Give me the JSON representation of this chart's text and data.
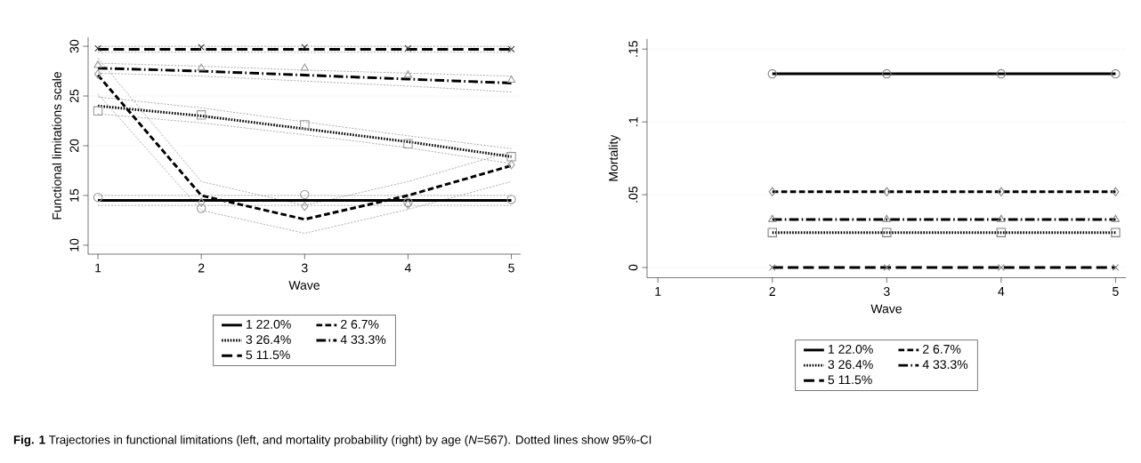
{
  "chart_data": [
    {
      "type": "line",
      "xlabel": "Wave",
      "ylabel": "Functional limitations scale",
      "x": [
        1,
        2,
        3,
        4,
        5
      ],
      "xlim": [
        0.905,
        5.09
      ],
      "ylim": [
        9.1,
        30.9
      ],
      "xticks": [
        1,
        2,
        3,
        4,
        5
      ],
      "yticks": [
        10,
        15,
        20,
        25,
        30
      ],
      "grid": "y",
      "legend": "bottom",
      "annotations": [
        "**Fig. 1** Trajectories in functional limitations (left, and mortality probability (right) by age (*N*=567). Dotted lines show 95%-CI"
      ],
      "series": [
        {
          "color": "#aaaaaa",
          "line_style": "dashed",
          "values": [
            14.0,
            14.0,
            14.0,
            14.0,
            14.0
          ]
        },
        {
          "color": "#aaaaaa",
          "line_style": "dashed",
          "values": [
            15.0,
            15.0,
            15.0,
            15.0,
            15.0
          ]
        },
        {
          "color": "#aaaaaa",
          "line_style": "dashed",
          "values": [
            25.2,
            13.5,
            11.2,
            13.6,
            16.4
          ]
        },
        {
          "color": "#aaaaaa",
          "line_style": "dashed",
          "values": [
            28.8,
            16.4,
            14.0,
            16.4,
            19.4
          ]
        },
        {
          "color": "#aaaaaa",
          "line_style": "dashed",
          "values": [
            23.2,
            22.3,
            21.1,
            19.8,
            18.2
          ]
        },
        {
          "color": "#aaaaaa",
          "line_style": "dashed",
          "values": [
            24.9,
            23.8,
            22.4,
            21.0,
            19.7
          ]
        },
        {
          "color": "#aaaaaa",
          "line_style": "dashed",
          "values": [
            27.3,
            27.0,
            26.5,
            26.0,
            25.4
          ]
        },
        {
          "color": "#aaaaaa",
          "line_style": "dashed",
          "values": [
            28.3,
            28.0,
            27.6,
            27.3,
            27.0
          ]
        },
        {
          "color": "#aaaaaa",
          "line_style": "dashed",
          "values": [
            29.4,
            29.4,
            29.4,
            29.4,
            29.4
          ]
        },
        {
          "color": "#aaaaaa",
          "line_style": "dashed",
          "values": [
            30.0,
            30.0,
            30.0,
            30.0,
            30.0
          ]
        },
        {
          "name": "1 22.0%",
          "color": "#000000",
          "line_style": "solid",
          "values": [
            14.5,
            14.5,
            14.5,
            14.5,
            14.5
          ]
        },
        {
          "name": "2 6.7%",
          "color": "#000000",
          "line_style": "dashed",
          "values": [
            27.1,
            15.0,
            12.6,
            15.0,
            18.0
          ]
        },
        {
          "name": "3 26.4%",
          "color": "#000000",
          "line_style": "dotted",
          "values": [
            24.0,
            23.0,
            21.7,
            20.4,
            18.9
          ]
        },
        {
          "name": "4 33.3%",
          "color": "#000000",
          "line_style": "dashdot",
          "values": [
            27.8,
            27.5,
            27.1,
            26.7,
            26.3
          ]
        },
        {
          "name": "5 11.5%",
          "color": "#000000",
          "line_style": "longdash",
          "values": [
            29.7,
            29.7,
            29.7,
            29.7,
            29.7
          ]
        },
        {
          "type": "scatter",
          "color": "#999999",
          "marker": "circle",
          "values": [
            14.8,
            13.7,
            15.1,
            14.3,
            14.6
          ]
        },
        {
          "type": "scatter",
          "color": "#999999",
          "marker": "diamond",
          "values": [
            27.2,
            14.3,
            13.9,
            14.1,
            18.1
          ]
        },
        {
          "type": "scatter",
          "color": "#999999",
          "marker": "square",
          "values": [
            23.5,
            23.1,
            22.1,
            20.2,
            18.9
          ]
        },
        {
          "type": "scatter",
          "color": "#999999",
          "marker": "triangle",
          "values": [
            28.1,
            27.8,
            27.8,
            27.1,
            26.6
          ]
        },
        {
          "type": "scatter",
          "color": "#333333",
          "marker": "cross",
          "values": [
            29.8,
            29.9,
            29.9,
            29.8,
            29.7
          ]
        }
      ]
    },
    {
      "type": "line",
      "xlabel": "Wave",
      "ylabel": "Mortality",
      "x": [
        2,
        3,
        4,
        5
      ],
      "xlim": [
        0.905,
        5.09
      ],
      "ylim": [
        -0.007,
        0.157
      ],
      "xticks": [
        1,
        2,
        3,
        4,
        5
      ],
      "yticks": [
        0,
        {
          "value": 0.05,
          "label": ".05"
        },
        {
          "value": 0.1,
          "label": ".1"
        },
        {
          "value": 0.15,
          "label": ".15"
        }
      ],
      "grid": "y",
      "legend": "bottom",
      "series": [
        {
          "name": "1 22.0%",
          "color": "#000000",
          "line_style": "solid",
          "marker": "circle",
          "values": [
            0.133,
            0.133,
            0.133,
            0.133
          ]
        },
        {
          "name": "2 6.7%",
          "color": "#000000",
          "line_style": "dashed",
          "marker": "diamond",
          "values": [
            0.052,
            0.052,
            0.052,
            0.052
          ]
        },
        {
          "name": "3 26.4%",
          "color": "#000000",
          "line_style": "dotted",
          "marker": "square",
          "values": [
            0.024,
            0.024,
            0.024,
            0.024
          ]
        },
        {
          "name": "4 33.3%",
          "color": "#000000",
          "line_style": "dashdot",
          "marker": "triangle",
          "values": [
            0.033,
            0.033,
            0.033,
            0.033
          ]
        },
        {
          "name": "5 11.5%",
          "color": "#000000",
          "line_style": "longdash",
          "marker": "cross",
          "values": [
            0,
            0,
            0,
            0
          ]
        }
      ]
    }
  ]
}
